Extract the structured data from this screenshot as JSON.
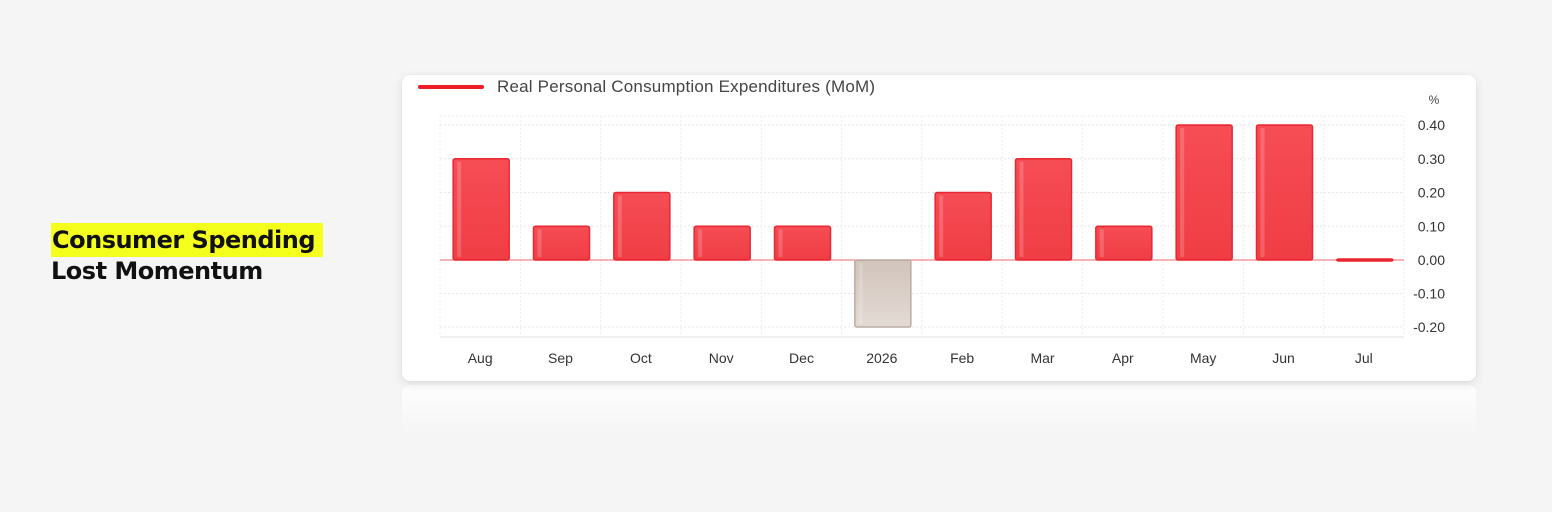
{
  "headline": {
    "line1": "Consumer Spending",
    "line2": "Lost Momentum",
    "highlight_color": "#f5ff1e"
  },
  "chart_data": {
    "type": "bar",
    "categories": [
      "Aug",
      "Sep",
      "Oct",
      "Nov",
      "Dec",
      "2026",
      "Feb",
      "Mar",
      "Apr",
      "May",
      "Jun",
      "Jul"
    ],
    "series": [
      {
        "name": "Real Personal Consumption Expenditures (MoM)",
        "values": [
          0.3,
          0.1,
          0.2,
          0.1,
          0.1,
          -0.2,
          0.2,
          0.3,
          0.1,
          0.4,
          0.4,
          0.0
        ],
        "color": "#ee1c24",
        "negative_color": "#d8cdc6"
      }
    ],
    "unit": "%",
    "yticks": [
      "0.40",
      "0.30",
      "0.20",
      "0.10",
      "0.00",
      "-0.10",
      "-0.20"
    ],
    "ylim": [
      -0.2,
      0.4
    ],
    "grid": true,
    "legend_position": "top-left",
    "y_axis_position": "right"
  }
}
